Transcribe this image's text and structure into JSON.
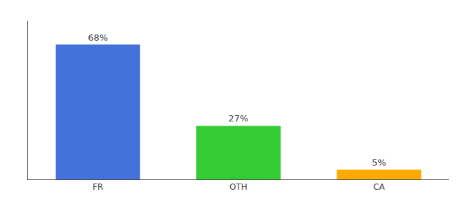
{
  "chart_data": {
    "type": "bar",
    "categories": [
      "FR",
      "OTH",
      "CA"
    ],
    "values": [
      68,
      27,
      5
    ],
    "value_labels": [
      "68%",
      "27%",
      "5%"
    ],
    "data_labels": true,
    "colors": [
      "#4472db",
      "#33cc33",
      "#ffaa00"
    ],
    "ylim": [
      0,
      80
    ],
    "grid": false,
    "tick_labels": "x"
  }
}
